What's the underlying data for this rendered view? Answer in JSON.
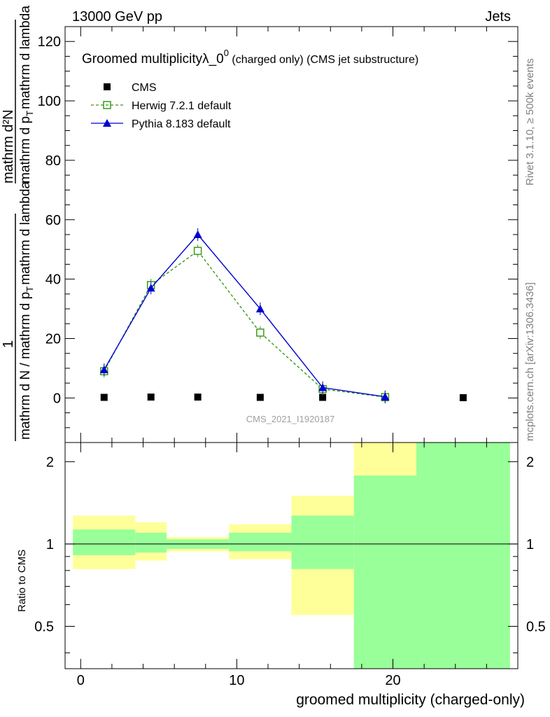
{
  "header": {
    "energy_label": "13000 GeV pp",
    "process_label": "Jets"
  },
  "side_labels": {
    "rivet": "Rivet 3.1.10, ≥ 500k events",
    "mcplots": "mcplots.cern.ch [arXiv:1306.3436]"
  },
  "chart_data": [
    {
      "type": "line",
      "title_main": "Groomed multiplicityλ_0",
      "title_sup": "0",
      "title_suffix": " (charged only) (CMS jet substructure)",
      "ylabel_numerator": "1",
      "ylabel_numerator_right": "mathrm d²N",
      "ylabel_denominator": "mathrm d N / mathrm d p_T mathrm d p_T mathrm d lambda",
      "ylabel_top": "mathrm d²N",
      "ylabel_bottom": "mathrm d N / mathrm d p",
      "ylabel_bottom_mid": "mathrm d p",
      "ylabel_bottom_end": "mathrm d lambda",
      "ylabel_sub": "T",
      "ylim": [
        -15,
        125
      ],
      "yticks": [
        0,
        20,
        40,
        60,
        80,
        100,
        120
      ],
      "watermark": "CMS_2021_I1920187",
      "series": [
        {
          "name": "CMS",
          "marker": "square",
          "color": "#000000",
          "x": [
            1.5,
            4.5,
            7.5,
            11.5,
            15.5,
            19.5,
            24.5
          ],
          "y": [
            0.2,
            0.3,
            0.3,
            0.2,
            0.2,
            0.1,
            0.1
          ]
        },
        {
          "name": "Herwig 7.2.1 default",
          "marker": "open-square",
          "color": "#3a9a1c",
          "dashed": true,
          "x": [
            1.5,
            4.5,
            7.5,
            11.5,
            15.5,
            19.5
          ],
          "y": [
            9,
            38,
            49.5,
            22,
            3,
            0.3
          ]
        },
        {
          "name": "Pythia 8.183 default",
          "marker": "triangle",
          "color": "#0000d0",
          "dashed": false,
          "x": [
            1.5,
            4.5,
            7.5,
            11.5,
            15.5,
            19.5
          ],
          "y": [
            9.5,
            37,
            55,
            30,
            3.5,
            0.4
          ]
        }
      ]
    },
    {
      "type": "area",
      "ylabel": "Ratio to CMS",
      "xlabel": "groomed multiplicity (charged-only)",
      "xlim": [
        -1,
        28
      ],
      "xticks": [
        0,
        10,
        20
      ],
      "ylim": [
        0.35,
        2.35
      ],
      "yticks": [
        0.5,
        1,
        2
      ],
      "ytick_labels": [
        "0.5",
        "1",
        "2"
      ],
      "reference_line": 1,
      "bands": [
        {
          "x0": -0.5,
          "x1": 3.5,
          "yellow": [
            0.81,
            1.27
          ],
          "green": [
            0.91,
            1.13
          ]
        },
        {
          "x0": 3.5,
          "x1": 5.5,
          "yellow": [
            0.87,
            1.2
          ],
          "green": [
            0.93,
            1.1
          ]
        },
        {
          "x0": 5.5,
          "x1": 9.5,
          "yellow": [
            0.94,
            1.06
          ],
          "green": [
            0.96,
            1.04
          ]
        },
        {
          "x0": 9.5,
          "x1": 13.5,
          "yellow": [
            0.88,
            1.18
          ],
          "green": [
            0.94,
            1.1
          ]
        },
        {
          "x0": 13.5,
          "x1": 17.5,
          "yellow": [
            0.55,
            1.5
          ],
          "green": [
            0.81,
            1.27
          ]
        },
        {
          "x0": 17.5,
          "x1": 21.5,
          "yellow": [
            0.35,
            2.35
          ],
          "green": [
            0.35,
            1.78
          ]
        },
        {
          "x0": 21.5,
          "x1": 27.5,
          "yellow": [
            0.35,
            2.35
          ],
          "green": [
            0.35,
            2.35
          ]
        }
      ]
    }
  ]
}
